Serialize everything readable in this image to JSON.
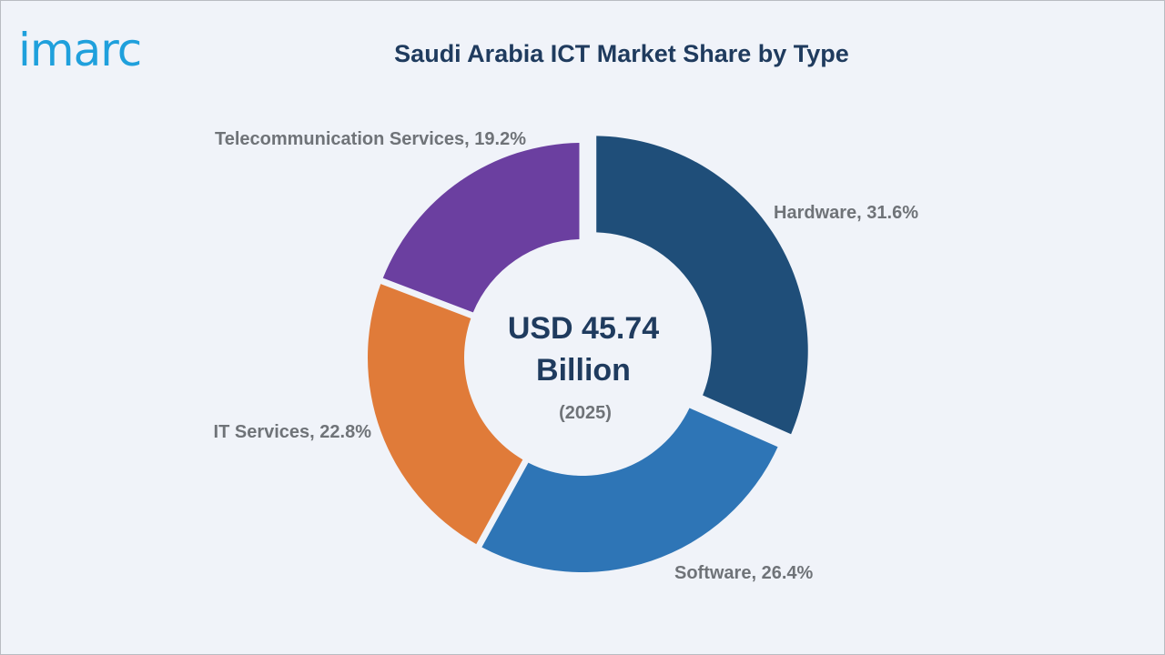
{
  "brand": {
    "logo_text": "imarc",
    "logo_color": "#1fa0dc"
  },
  "chart_data": {
    "type": "pie",
    "variant": "donut",
    "title": "Saudi Arabia ICT Market Share by Type",
    "center_text": {
      "line1": "USD 45.74",
      "line2": "Billion",
      "line3": "(2025)"
    },
    "categories": [
      "Hardware",
      "Software",
      "IT Services",
      "Telecommunication Services"
    ],
    "values": [
      31.6,
      26.4,
      22.8,
      19.2
    ],
    "unit": "%",
    "labels": [
      "Hardware, 31.6%",
      "Software, 26.4%",
      "IT Services, 22.8%",
      "Telecommunication Services, 19.2%"
    ],
    "colors": [
      "#1f4e79",
      "#2e75b6",
      "#e07b39",
      "#6b3fa0"
    ],
    "exploded": [
      "Hardware"
    ]
  }
}
